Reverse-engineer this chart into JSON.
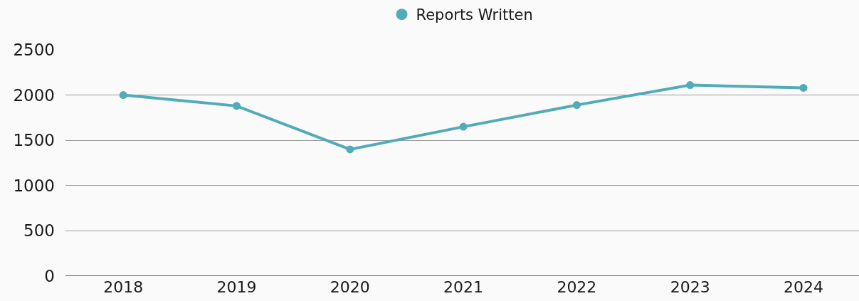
{
  "chart_data": {
    "type": "line",
    "categories": [
      "2018",
      "2019",
      "2020",
      "2021",
      "2022",
      "2023",
      "2024"
    ],
    "series": [
      {
        "name": "Reports Written",
        "color": "#52abb8",
        "values": [
          2000,
          1880,
          1400,
          1650,
          1890,
          2110,
          2080
        ]
      }
    ],
    "ylim": [
      0,
      2500
    ],
    "yticks": [
      0,
      500,
      1000,
      1500,
      2000,
      2500
    ],
    "grid": "y",
    "legend": "top",
    "marker": "circle",
    "line_style": "solid"
  }
}
